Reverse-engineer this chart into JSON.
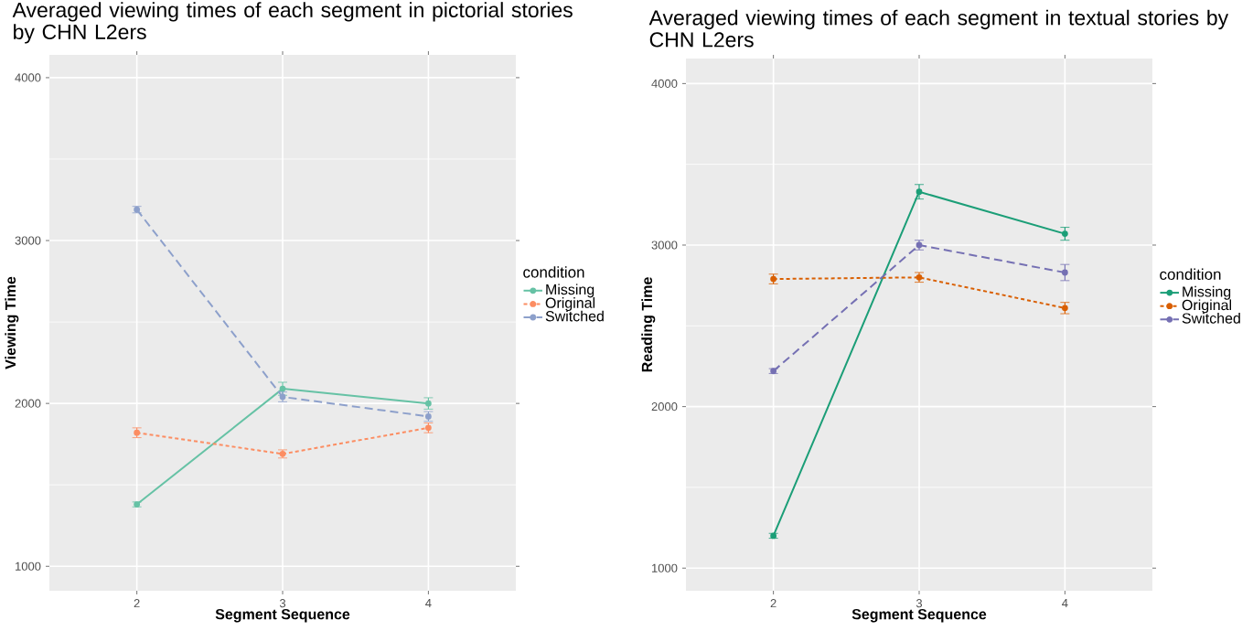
{
  "chart_data": [
    {
      "type": "line",
      "title": "Averaged viewing times of each segment in pictorial stories by CHN L2ers",
      "xlabel": "Segment Sequence",
      "ylabel": "Viewing Time",
      "legend_title": "condition",
      "categories": [
        "2",
        "3",
        "4"
      ],
      "ylim": [
        850,
        4140
      ],
      "yticks": [
        1000,
        2000,
        3000,
        4000
      ],
      "grid": true,
      "legend": "right",
      "marker": "circle",
      "series": [
        {
          "name": "Missing",
          "color": "#66c2a5",
          "line_style": "solid",
          "values": [
            1380,
            2090,
            2000
          ],
          "errors": [
            15,
            40,
            35
          ]
        },
        {
          "name": "Original",
          "color": "#fc8d62",
          "line_style": "dotted",
          "values": [
            1820,
            1690,
            1850
          ],
          "errors": [
            30,
            25,
            30
          ]
        },
        {
          "name": "Switched",
          "color": "#8da0cb",
          "line_style": "dashed",
          "values": [
            3190,
            2040,
            1920
          ],
          "errors": [
            20,
            30,
            30
          ]
        }
      ]
    },
    {
      "type": "line",
      "title": "Averaged viewing times of each segment in textual stories by CHN L2ers",
      "xlabel": "Segment Sequence",
      "ylabel": "Reading Time",
      "legend_title": "condition",
      "categories": [
        "2",
        "3",
        "4"
      ],
      "ylim": [
        860,
        4155
      ],
      "yticks": [
        1000,
        2000,
        3000,
        4000
      ],
      "grid": true,
      "legend": "right",
      "marker": "circle",
      "series": [
        {
          "name": "Missing",
          "color": "#1b9e77",
          "line_style": "solid",
          "values": [
            1200,
            3330,
            3070
          ],
          "errors": [
            15,
            45,
            40
          ]
        },
        {
          "name": "Original",
          "color": "#d95f02",
          "line_style": "dotted",
          "values": [
            2790,
            2800,
            2610
          ],
          "errors": [
            30,
            30,
            35
          ]
        },
        {
          "name": "Switched",
          "color": "#7570b3",
          "line_style": "dashed",
          "values": [
            2220,
            3000,
            2830
          ],
          "errors": [
            15,
            30,
            50
          ]
        }
      ]
    }
  ]
}
